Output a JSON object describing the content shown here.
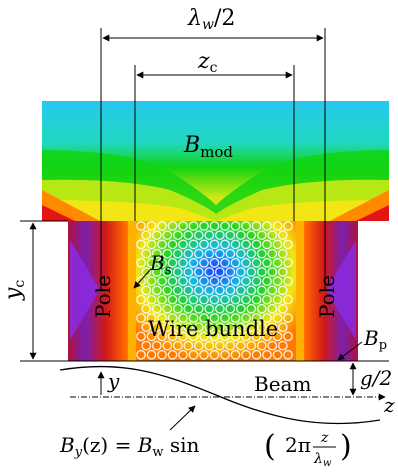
{
  "labels": {
    "lambda_half": "λ",
    "lambda_sub": "w",
    "lambda_tail": "/2",
    "zc_main": "z",
    "zc_sub": "c",
    "bmod_main": "B",
    "bmod_sub": "mod",
    "yc_main": "y",
    "yc_sub": "c",
    "bs_main": "B",
    "bs_sub": "s",
    "pole_left": "Pole",
    "pole_right": "Pole",
    "wire_bundle": "Wire bundle",
    "bp_main": "B",
    "bp_sub": "p",
    "y_axis": "y",
    "g_half": "g/2",
    "beam": "Beam",
    "z_axis": "z",
    "formula_lhs": "B",
    "formula_lhs_sub": "y",
    "formula_lhs_arg": "(z) = ",
    "formula_bw": "B",
    "formula_bw_sub": "w",
    "formula_sin": " sin ",
    "formula_2pi": "2π",
    "formula_num": "z",
    "formula_den": "λ",
    "formula_den_sub": "w"
  },
  "colors": {
    "cyan": "#26c6ef",
    "green": "#12d312",
    "yellow": "#f2ec16",
    "orange": "#ff8a00",
    "red": "#e41414",
    "darkred": "#a8101a",
    "purple": "#8a2be2"
  }
}
